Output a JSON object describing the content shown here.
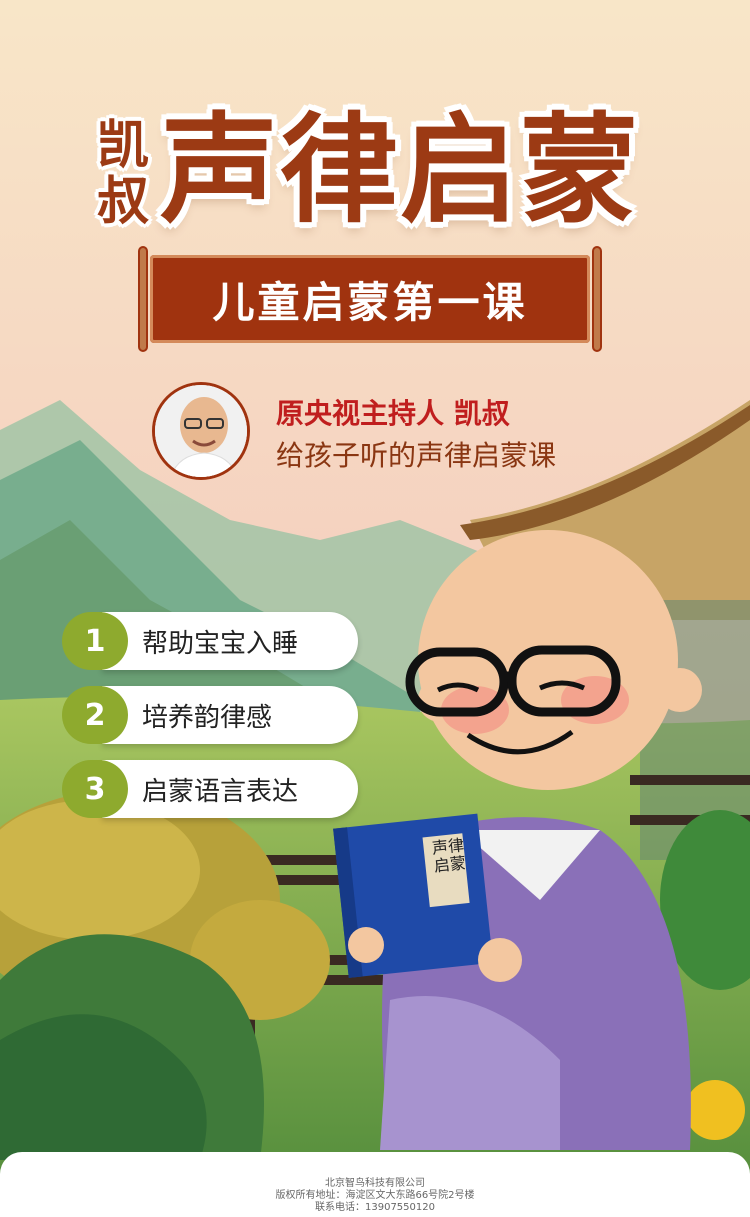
{
  "header": {
    "prefix": "凯叔",
    "title": "声律启蒙",
    "subtitle": "儿童启蒙第一课"
  },
  "host": {
    "line1": "原央视主持人 凯叔",
    "line2": "给孩子听的声律启蒙课"
  },
  "benefits": [
    {
      "num": "1",
      "label": "帮助宝宝入睡"
    },
    {
      "num": "2",
      "label": "培养韵律感"
    },
    {
      "num": "3",
      "label": "启蒙语言表达"
    }
  ],
  "book": {
    "title": "声律启蒙"
  },
  "footer": {
    "company": "北京智鸟科技有限公司",
    "address": "版权所有地址：海淀区文大东路66号院2号楼",
    "phone": "联系电话：13907550120"
  },
  "colors": {
    "brand": "#9c3a14",
    "banner": "#a0330f",
    "accent_green": "#8eaa2e",
    "host_red": "#c01e1e"
  }
}
